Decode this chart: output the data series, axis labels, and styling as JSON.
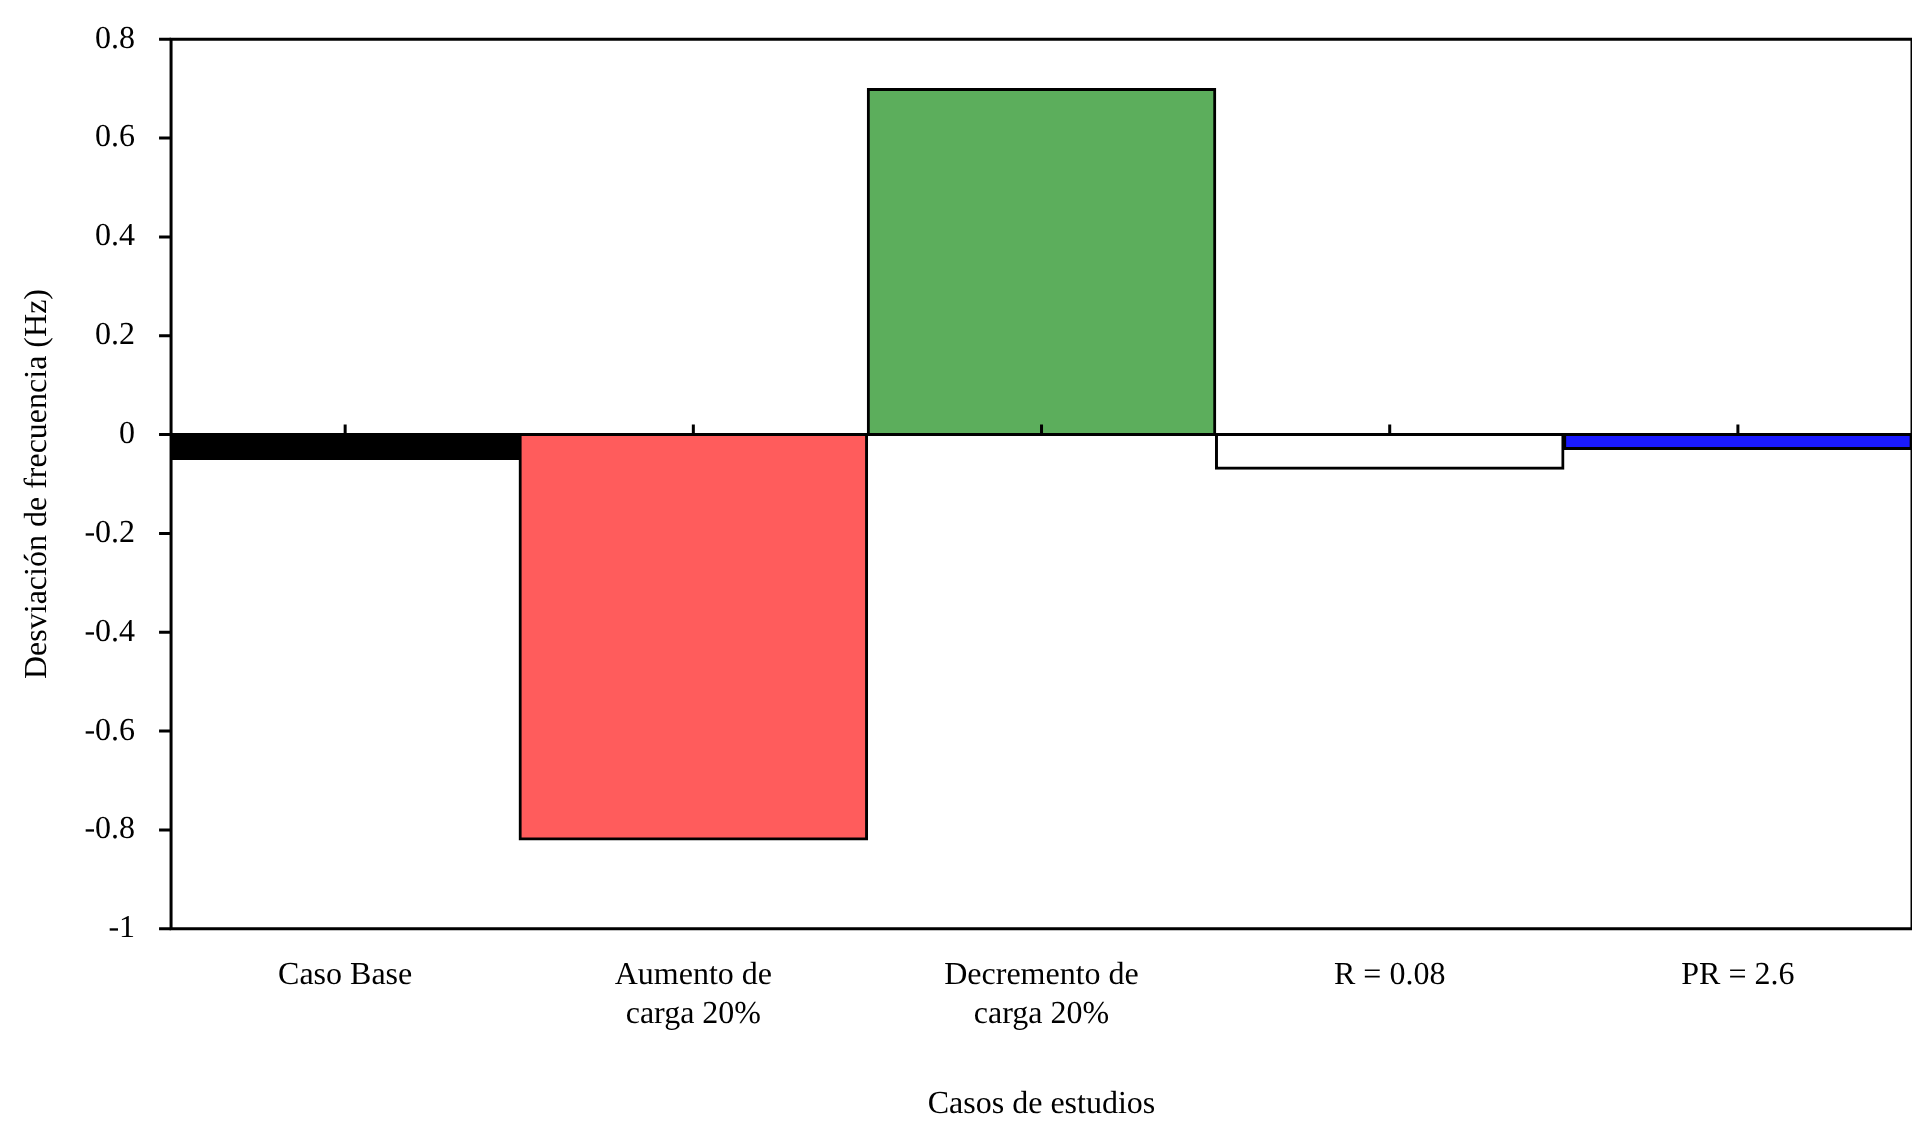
{
  "chart_data": {
    "type": "bar",
    "xlabel": "Casos de estudios",
    "ylabel": "Desviación de frecuencia (Hz)",
    "categories": [
      "Caso Base",
      "Aumento de carga 20%",
      "Decremento de carga 20%",
      "R = 0.08",
      "PR = 2.6"
    ],
    "values": [
      -0.05,
      -0.82,
      0.7,
      -0.07,
      -0.03
    ],
    "colors": [
      "#000000",
      "#ff5c5c",
      "#5cae5c",
      "#ffffff",
      "#1a1aff"
    ],
    "ylim": [
      -1,
      0.8
    ],
    "yticks": [
      -1,
      -0.8,
      -0.6,
      -0.4,
      -0.2,
      0,
      0.2,
      0.4,
      0.6,
      0.8
    ],
    "ref_lines": [
      {
        "axis": "y",
        "value": 0
      }
    ],
    "grid": false,
    "legend": false
  }
}
